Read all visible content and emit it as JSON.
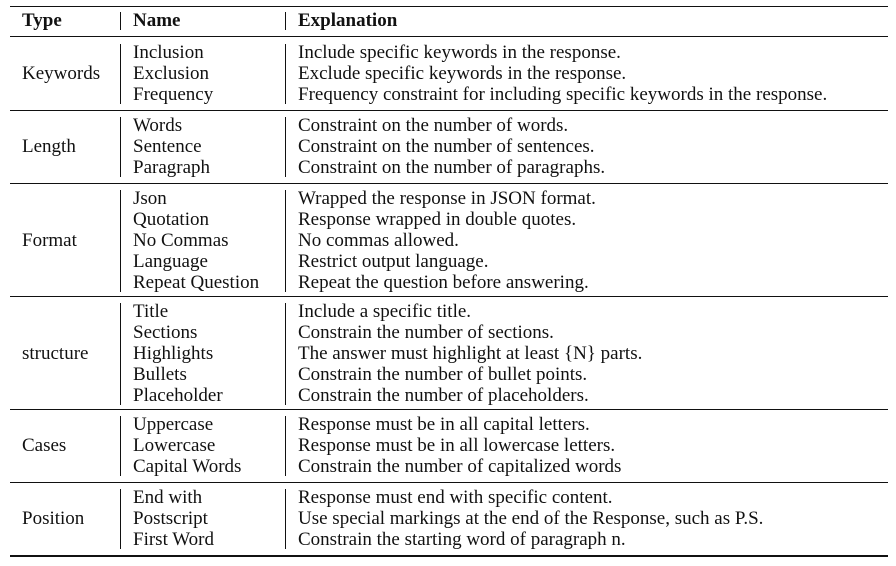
{
  "header": {
    "type": "Type",
    "name": "Name",
    "explanation": "Explanation"
  },
  "groups": [
    {
      "type": "Keywords",
      "items": [
        {
          "name": "Inclusion",
          "explanation": "Include specific keywords in the response."
        },
        {
          "name": "Exclusion",
          "explanation": "Exclude specific keywords in the response."
        },
        {
          "name": "Frequency",
          "explanation": "Frequency constraint for including specific keywords in the response."
        }
      ]
    },
    {
      "type": "Length",
      "items": [
        {
          "name": "Words",
          "explanation": "Constraint on the number of words."
        },
        {
          "name": "Sentence",
          "explanation": "Constraint on the number of sentences."
        },
        {
          "name": "Paragraph",
          "explanation": "Constraint on the number of paragraphs."
        }
      ]
    },
    {
      "type": "Format",
      "items": [
        {
          "name": "Json",
          "explanation": "Wrapped the response in JSON format."
        },
        {
          "name": "Quotation",
          "explanation": "Response wrapped in double quotes."
        },
        {
          "name": "No Commas",
          "explanation": "No commas allowed."
        },
        {
          "name": "Language",
          "explanation": "Restrict output language."
        },
        {
          "name": "Repeat Question",
          "explanation": "Repeat the question before answering."
        }
      ]
    },
    {
      "type": "structure",
      "items": [
        {
          "name": "Title",
          "explanation": "Include a specific title."
        },
        {
          "name": "Sections",
          "explanation": "Constrain the number of sections."
        },
        {
          "name": "Highlights",
          "explanation": "The answer must highlight at least {N} parts."
        },
        {
          "name": "Bullets",
          "explanation": "Constrain the number of bullet points."
        },
        {
          "name": "Placeholder",
          "explanation": "Constrain the number of placeholders."
        }
      ]
    },
    {
      "type": "Cases",
      "items": [
        {
          "name": "Uppercase",
          "explanation": "Response must be in all capital letters."
        },
        {
          "name": "Lowercase",
          "explanation": "Response must be in all lowercase letters."
        },
        {
          "name": "Capital Words",
          "explanation": "Constrain the number of capitalized words"
        }
      ]
    },
    {
      "type": "Position",
      "items": [
        {
          "name": "End with",
          "explanation": "Response must end with specific content."
        },
        {
          "name": "Postscript",
          "explanation": "Use special markings at the end of the Response, such as P.S."
        },
        {
          "name": "First Word",
          "explanation": "Constrain the starting word of paragraph n."
        }
      ]
    }
  ]
}
